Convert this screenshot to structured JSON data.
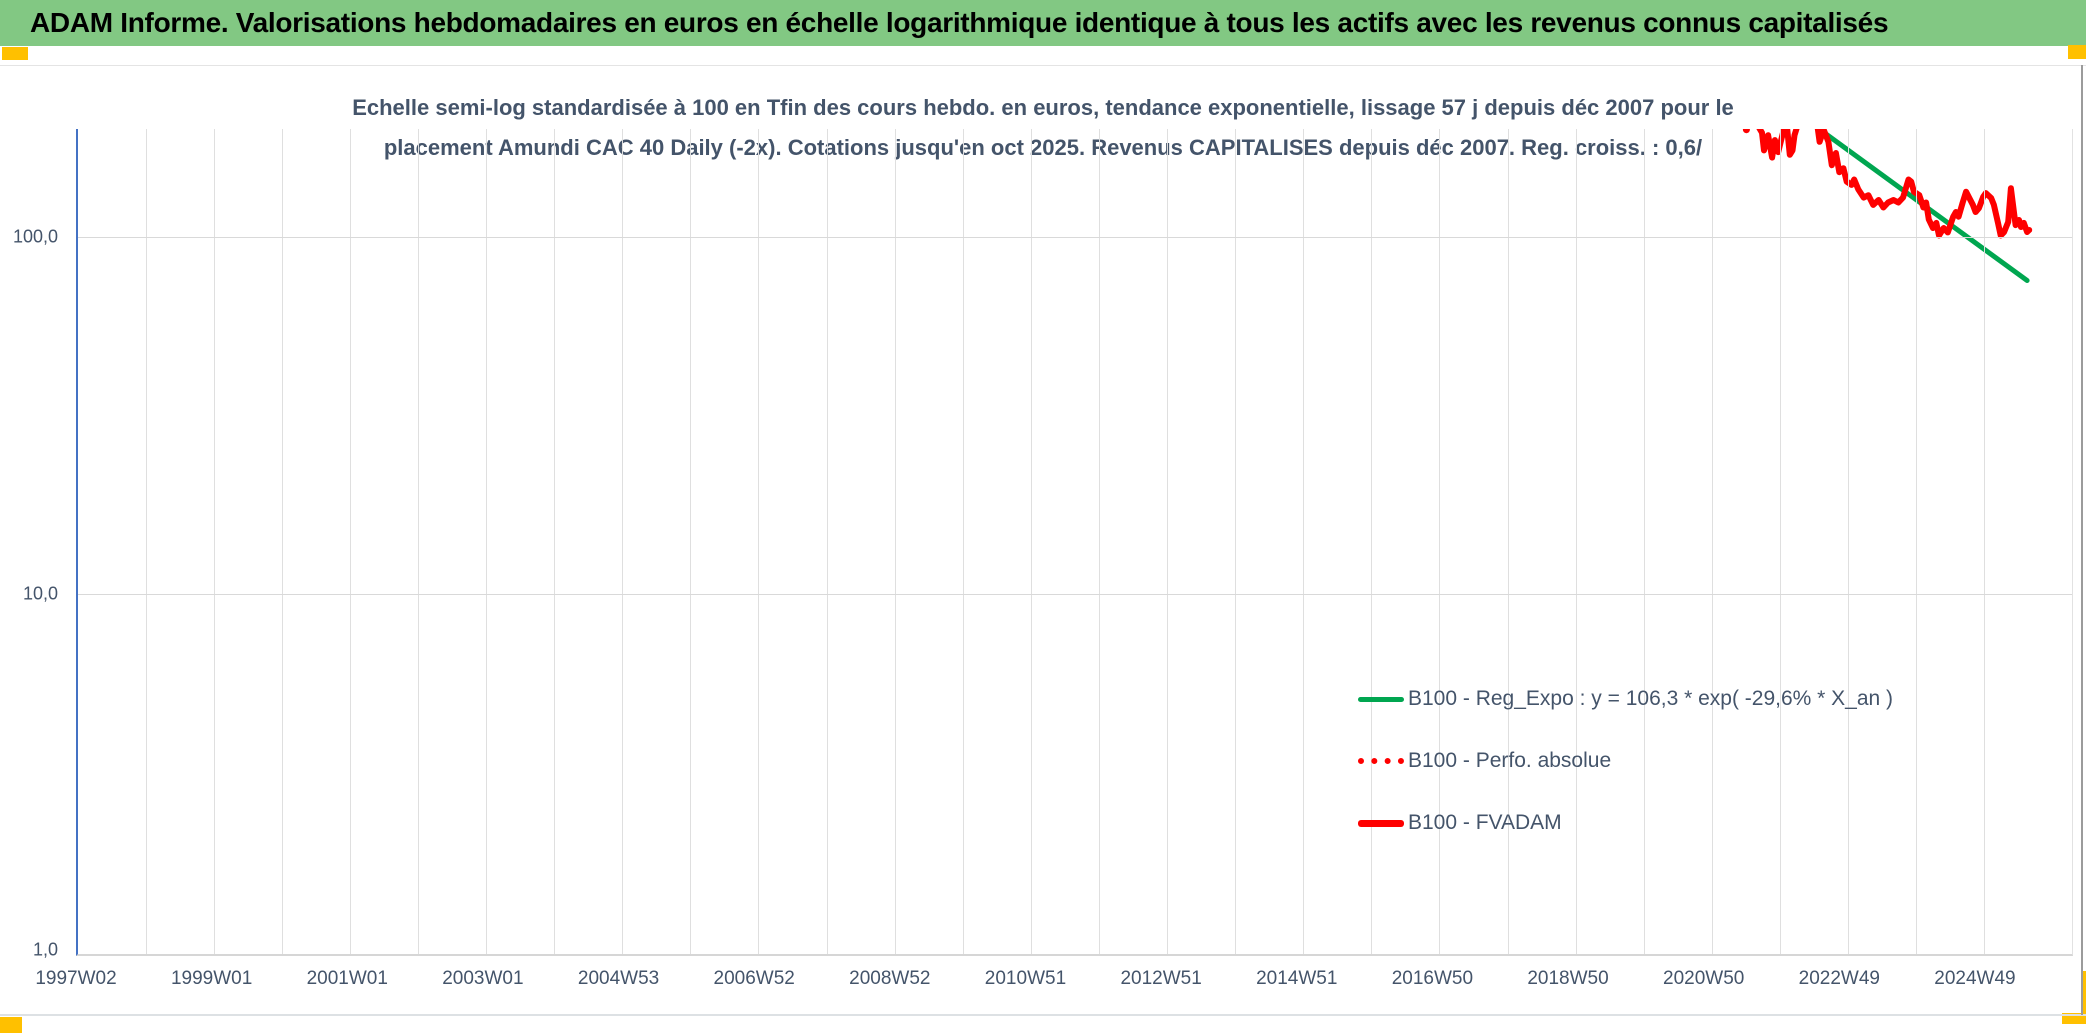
{
  "banner": {
    "title": "ADAM Informe. Valorisations hebdomadaires en euros en échelle logarithmique identique à tous les actifs avec les revenus connus capitalisés"
  },
  "chart": {
    "title_line1": "Echelle semi-log standardisée à 100 en Tfin des cours hebdo. en euros, tendance exponentielle, lissage 57 j depuis déc 2007 pour le",
    "title_line2": "placement Amundi CAC 40 Daily (-2x). Cotations jusqu'en oct 2025. Revenus CAPITALISES depuis déc 2007. Reg. croiss. : 0,6/"
  },
  "colors": {
    "banner_green": "#82C883",
    "accent_yellow": "#FFC000",
    "reg_green": "#00A650",
    "series_red": "#FE0000",
    "title_slate": "#44546A",
    "axis_blue": "#4472C4",
    "gridline": "#D9D9D9"
  },
  "chart_data": {
    "type": "line",
    "title": "Echelle semi-log standardisée à 100 en Tfin des cours hebdo. en euros, tendance exponentielle, lissage 57 j depuis déc 2007 pour le placement Amundi CAC 40 Daily (-2x). Cotations jusqu'en oct 2025. Revenus CAPITALISES depuis déc 2007. Reg. croiss. : 0,6/",
    "y_scale": "log",
    "y_axis": {
      "min": 1,
      "max": 200,
      "ticks": [
        {
          "v": 100,
          "label": "100,0"
        },
        {
          "v": 10,
          "label": "10,0"
        },
        {
          "v": 1,
          "label": "1,0"
        }
      ]
    },
    "x_axis": {
      "unit": "ISO week",
      "labels": [
        "1997W02",
        "1999W01",
        "2001W01",
        "2003W01",
        "2004W53",
        "2006W52",
        "2008W52",
        "2010W51",
        "2012W51",
        "2014W51",
        "2016W50",
        "2018W50",
        "2020W50",
        "2022W49",
        "2024W49"
      ],
      "label_years": [
        1997.04,
        1999.0,
        2001.0,
        2003.0,
        2004.98,
        2006.98,
        2008.98,
        2010.96,
        2012.96,
        2014.96,
        2016.94,
        2018.94,
        2020.94,
        2022.92,
        2024.92
      ]
    },
    "legend_position": "inside-right",
    "grid": true,
    "series": [
      {
        "name": "B100 - Reg_Expo : y = 106,3 * exp( -29,6% *  X_an )",
        "color": "#00A650",
        "style": "solid",
        "width": 5,
        "points": [
          [
            2022.5,
            215
          ],
          [
            2025.78,
            75.5
          ]
        ]
      },
      {
        "name": "B100 - Perfo. absolue",
        "color": "#FE0000",
        "style": "dotted",
        "width": 5,
        "visible_in_plot": false,
        "points": []
      },
      {
        "name": "B100 - FVADAM",
        "color": "#FE0000",
        "style": "solid",
        "width": 6,
        "values_above_max_clipped": true,
        "leading_dot": [
          2021.64,
          200
        ],
        "points": [
          [
            2021.8,
            215
          ],
          [
            2021.83,
            202
          ],
          [
            2021.87,
            196
          ],
          [
            2021.9,
            175
          ],
          [
            2021.96,
            193
          ],
          [
            2022.02,
            167
          ],
          [
            2022.06,
            187
          ],
          [
            2022.11,
            173
          ],
          [
            2022.19,
            200
          ],
          [
            2022.24,
            202
          ],
          [
            2022.28,
            170
          ],
          [
            2022.32,
            175
          ],
          [
            2022.35,
            193
          ],
          [
            2022.41,
            210
          ],
          [
            2022.68,
            210
          ],
          [
            2022.72,
            185
          ],
          [
            2022.78,
            200
          ],
          [
            2022.85,
            185
          ],
          [
            2022.9,
            159
          ],
          [
            2022.96,
            172
          ],
          [
            2023.01,
            152
          ],
          [
            2023.07,
            156
          ],
          [
            2023.12,
            143
          ],
          [
            2023.19,
            140
          ],
          [
            2023.23,
            145
          ],
          [
            2023.29,
            136
          ],
          [
            2023.37,
            129
          ],
          [
            2023.44,
            131
          ],
          [
            2023.51,
            123
          ],
          [
            2023.59,
            127
          ],
          [
            2023.66,
            121
          ],
          [
            2023.73,
            125
          ],
          [
            2023.81,
            127
          ],
          [
            2023.88,
            125
          ],
          [
            2023.95,
            129
          ],
          [
            2024.03,
            145
          ],
          [
            2024.07,
            143
          ],
          [
            2024.11,
            134
          ],
          [
            2024.19,
            131
          ],
          [
            2024.25,
            121
          ],
          [
            2024.29,
            125
          ],
          [
            2024.33,
            112
          ],
          [
            2024.39,
            106
          ],
          [
            2024.44,
            109.5
          ],
          [
            2024.48,
            101
          ],
          [
            2024.55,
            106
          ],
          [
            2024.61,
            103
          ],
          [
            2024.69,
            114
          ],
          [
            2024.73,
            117.5
          ],
          [
            2024.77,
            114
          ],
          [
            2024.83,
            125
          ],
          [
            2024.88,
            134
          ],
          [
            2024.92,
            129.5
          ],
          [
            2024.98,
            123
          ],
          [
            2025.02,
            117.5
          ],
          [
            2025.07,
            120.6
          ],
          [
            2025.13,
            129.5
          ],
          [
            2025.17,
            132.8
          ],
          [
            2025.25,
            128.6
          ],
          [
            2025.29,
            123
          ],
          [
            2025.35,
            109.5
          ],
          [
            2025.39,
            101
          ],
          [
            2025.44,
            103.3
          ],
          [
            2025.5,
            110.2
          ],
          [
            2025.54,
            137
          ],
          [
            2025.61,
            108
          ],
          [
            2025.66,
            111.6
          ],
          [
            2025.69,
            106.7
          ],
          [
            2025.73,
            109.5
          ],
          [
            2025.78,
            103.3
          ],
          [
            2025.81,
            104.6
          ]
        ]
      }
    ]
  }
}
